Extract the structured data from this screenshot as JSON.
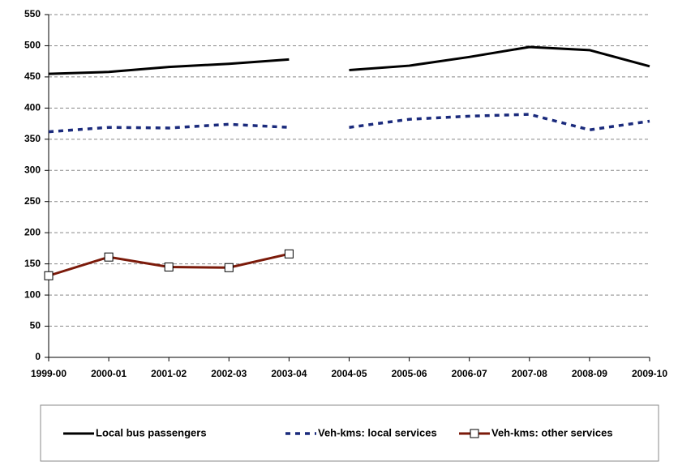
{
  "chart_data": {
    "type": "line",
    "categories": [
      "1999-00",
      "2000-01",
      "2001-02",
      "2002-03",
      "2003-04",
      "2004-05",
      "2005-06",
      "2006-07",
      "2007-08",
      "2008-09",
      "2009-10"
    ],
    "break_after": [
      4
    ],
    "series": [
      {
        "name": "Local bus passengers",
        "color": "#000000",
        "style": "solid",
        "marker": "none",
        "values": [
          455,
          458,
          466,
          471,
          478,
          461,
          468,
          482,
          498,
          493,
          467
        ]
      },
      {
        "name": "Veh-kms: local services",
        "color": "#1a2a7c",
        "style": "dashed",
        "marker": "none",
        "values": [
          362,
          369,
          368,
          374,
          369,
          369,
          382,
          387,
          390,
          365,
          379
        ]
      },
      {
        "name": "Veh-kms: other services",
        "color": "#7b1a0a",
        "style": "solid",
        "marker": "square",
        "values": [
          131,
          161,
          145,
          144,
          166,
          null,
          null,
          null,
          null,
          null,
          null
        ]
      }
    ],
    "ylim": [
      0,
      550
    ],
    "yticks": [
      0,
      50,
      100,
      150,
      200,
      250,
      300,
      350,
      400,
      450,
      500,
      550
    ],
    "grid": true
  }
}
